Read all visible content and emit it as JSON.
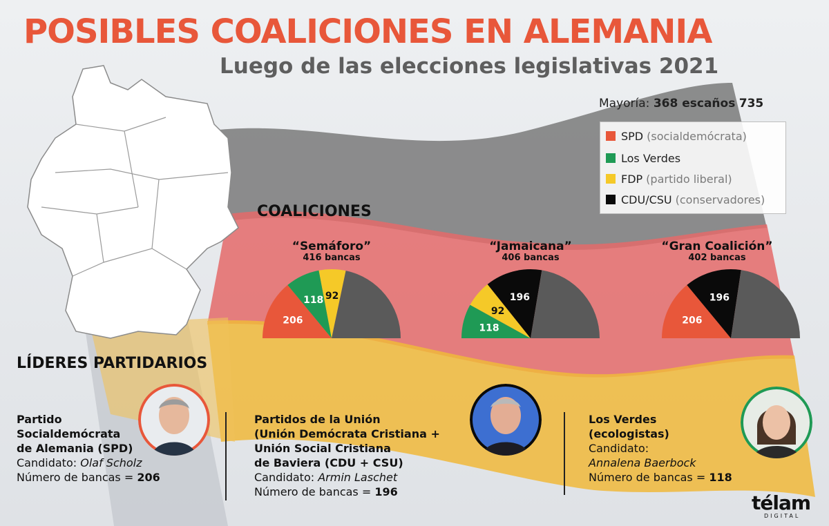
{
  "header": {
    "title": "POSIBLES COALICIONES EN ALEMANIA",
    "subtitle": "Luego de las elecciones legislativas 2021",
    "majority_label": "Mayoría:",
    "majority_value": "368 escaños",
    "total_value": "735"
  },
  "legend": [
    {
      "name": "SPD",
      "desc": "(socialdemócrata)",
      "color": "#e8573a"
    },
    {
      "name": "Los Verdes",
      "desc": "",
      "color": "#1f9a55"
    },
    {
      "name": "FDP",
      "desc": "(partido liberal)",
      "color": "#f5c928"
    },
    {
      "name": "CDU/CSU",
      "desc": "(conservadores)",
      "color": "#0a0a0a"
    }
  ],
  "section_coaliciones": "COALICIONES",
  "section_lideres": "LÍDERES PARTIDARIOS",
  "chart_data": [
    {
      "type": "pie",
      "title": "“Semáforo”",
      "subtitle": "416 bancas",
      "total": 735,
      "slices": [
        {
          "party": "SPD",
          "value": 206,
          "label": "206",
          "color": "#e8573a"
        },
        {
          "party": "Los Verdes",
          "value": 118,
          "label": "118",
          "color": "#1f9a55"
        },
        {
          "party": "FDP",
          "value": 92,
          "label": "92",
          "color": "#f5c928"
        }
      ],
      "rest_color": "#5a5a5a"
    },
    {
      "type": "pie",
      "title": "“Jamaicana”",
      "subtitle": "406 bancas",
      "total": 735,
      "slices": [
        {
          "party": "Los Verdes",
          "value": 118,
          "label": "118",
          "color": "#1f9a55"
        },
        {
          "party": "FDP",
          "value": 92,
          "label": "92",
          "color": "#f5c928"
        },
        {
          "party": "CDU/CSU",
          "value": 196,
          "label": "196",
          "color": "#0a0a0a"
        }
      ],
      "rest_color": "#5a5a5a"
    },
    {
      "type": "pie",
      "title": "“Gran Coalición”",
      "subtitle": "402 bancas",
      "total": 735,
      "slices": [
        {
          "party": "SPD",
          "value": 206,
          "label": "206",
          "color": "#e8573a"
        },
        {
          "party": "CDU/CSU",
          "value": 196,
          "label": "196",
          "color": "#0a0a0a"
        }
      ],
      "rest_color": "#5a5a5a"
    }
  ],
  "leaders": [
    {
      "party": "Partido\nSocialdemócrata\nde Alemania (SPD)",
      "candidate_label": "Candidato:",
      "candidate": "Olaf Scholz",
      "seats_label": "Número de bancas =",
      "seats": "206",
      "ring_color": "#e8573a"
    },
    {
      "party": "Partidos de la Unión\n(Unión Demócrata Cristiana +\nUnión Social Cristiana\nde Baviera (CDU + CSU)",
      "candidate_label": "Candidato:",
      "candidate": "Armin Laschet",
      "seats_label": "Número de bancas =",
      "seats": "196",
      "ring_color": "#0a0a0a"
    },
    {
      "party": "Los Verdes\n(ecologistas)",
      "candidate_label": "Candidato:",
      "candidate": "Annalena Baerbock",
      "seats_label": "Número de bancas =",
      "seats": "118",
      "ring_color": "#1f9a55"
    }
  ],
  "logo": {
    "name": "télam",
    "sub": "DIGITAL"
  }
}
